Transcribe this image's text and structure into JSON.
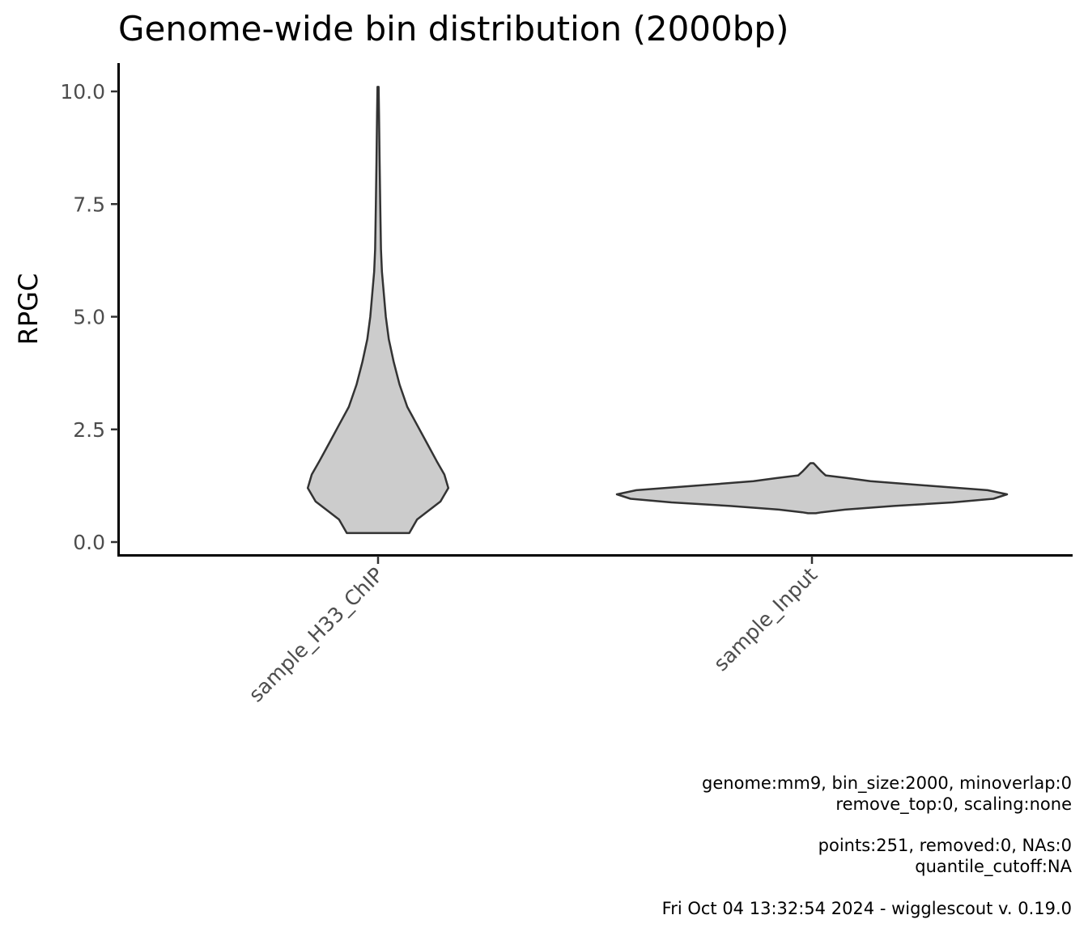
{
  "chart_data": {
    "type": "violin",
    "title": "Genome-wide bin distribution (2000bp)",
    "xlabel": "",
    "ylabel": "RPGC",
    "categories": [
      "sample_H33_ChIP",
      "sample_Input"
    ],
    "ylim": [
      -0.3,
      10.6
    ],
    "yticks": [
      "0.0",
      "2.5",
      "5.0",
      "7.5",
      "10.0"
    ],
    "ytick_values": [
      0,
      2.5,
      5,
      7.5,
      10
    ],
    "grid": false,
    "legend": "none",
    "fill_color": "#cccccc",
    "line_color": "#333333",
    "series": [
      {
        "category": "sample_H33_ChIP",
        "profile": [
          [
            0.2,
            0.16
          ],
          [
            0.5,
            0.2
          ],
          [
            0.9,
            0.32
          ],
          [
            1.2,
            0.36
          ],
          [
            1.5,
            0.34
          ],
          [
            1.8,
            0.3
          ],
          [
            2.2,
            0.25
          ],
          [
            2.6,
            0.2
          ],
          [
            3.0,
            0.15
          ],
          [
            3.5,
            0.11
          ],
          [
            4.0,
            0.08
          ],
          [
            4.5,
            0.055
          ],
          [
            5.0,
            0.04
          ],
          [
            5.5,
            0.03
          ],
          [
            6.0,
            0.02
          ],
          [
            6.5,
            0.015
          ],
          [
            7.5,
            0.011
          ],
          [
            8.5,
            0.008
          ],
          [
            9.5,
            0.005
          ],
          [
            10.1,
            0.003
          ]
        ]
      },
      {
        "category": "sample_Input",
        "profile": [
          [
            0.64,
            0.02
          ],
          [
            0.66,
            0.05
          ],
          [
            0.72,
            0.17
          ],
          [
            0.8,
            0.42
          ],
          [
            0.88,
            0.72
          ],
          [
            0.96,
            0.93
          ],
          [
            1.06,
            1.0
          ],
          [
            1.15,
            0.9
          ],
          [
            1.25,
            0.6
          ],
          [
            1.35,
            0.3
          ],
          [
            1.42,
            0.18
          ],
          [
            1.48,
            0.07
          ],
          [
            1.56,
            0.05
          ],
          [
            1.65,
            0.03
          ],
          [
            1.72,
            0.015
          ],
          [
            1.75,
            0.008
          ]
        ]
      }
    ]
  },
  "caption": {
    "line1": "genome:mm9, bin_size:2000, minoverlap:0",
    "line2": "remove_top:0, scaling:none",
    "line3": "points:251, removed:0, NAs:0",
    "line4": "quantile_cutoff:NA",
    "line5": "Fri Oct 04 13:32:54 2024 - wigglescout v. 0.19.0"
  }
}
